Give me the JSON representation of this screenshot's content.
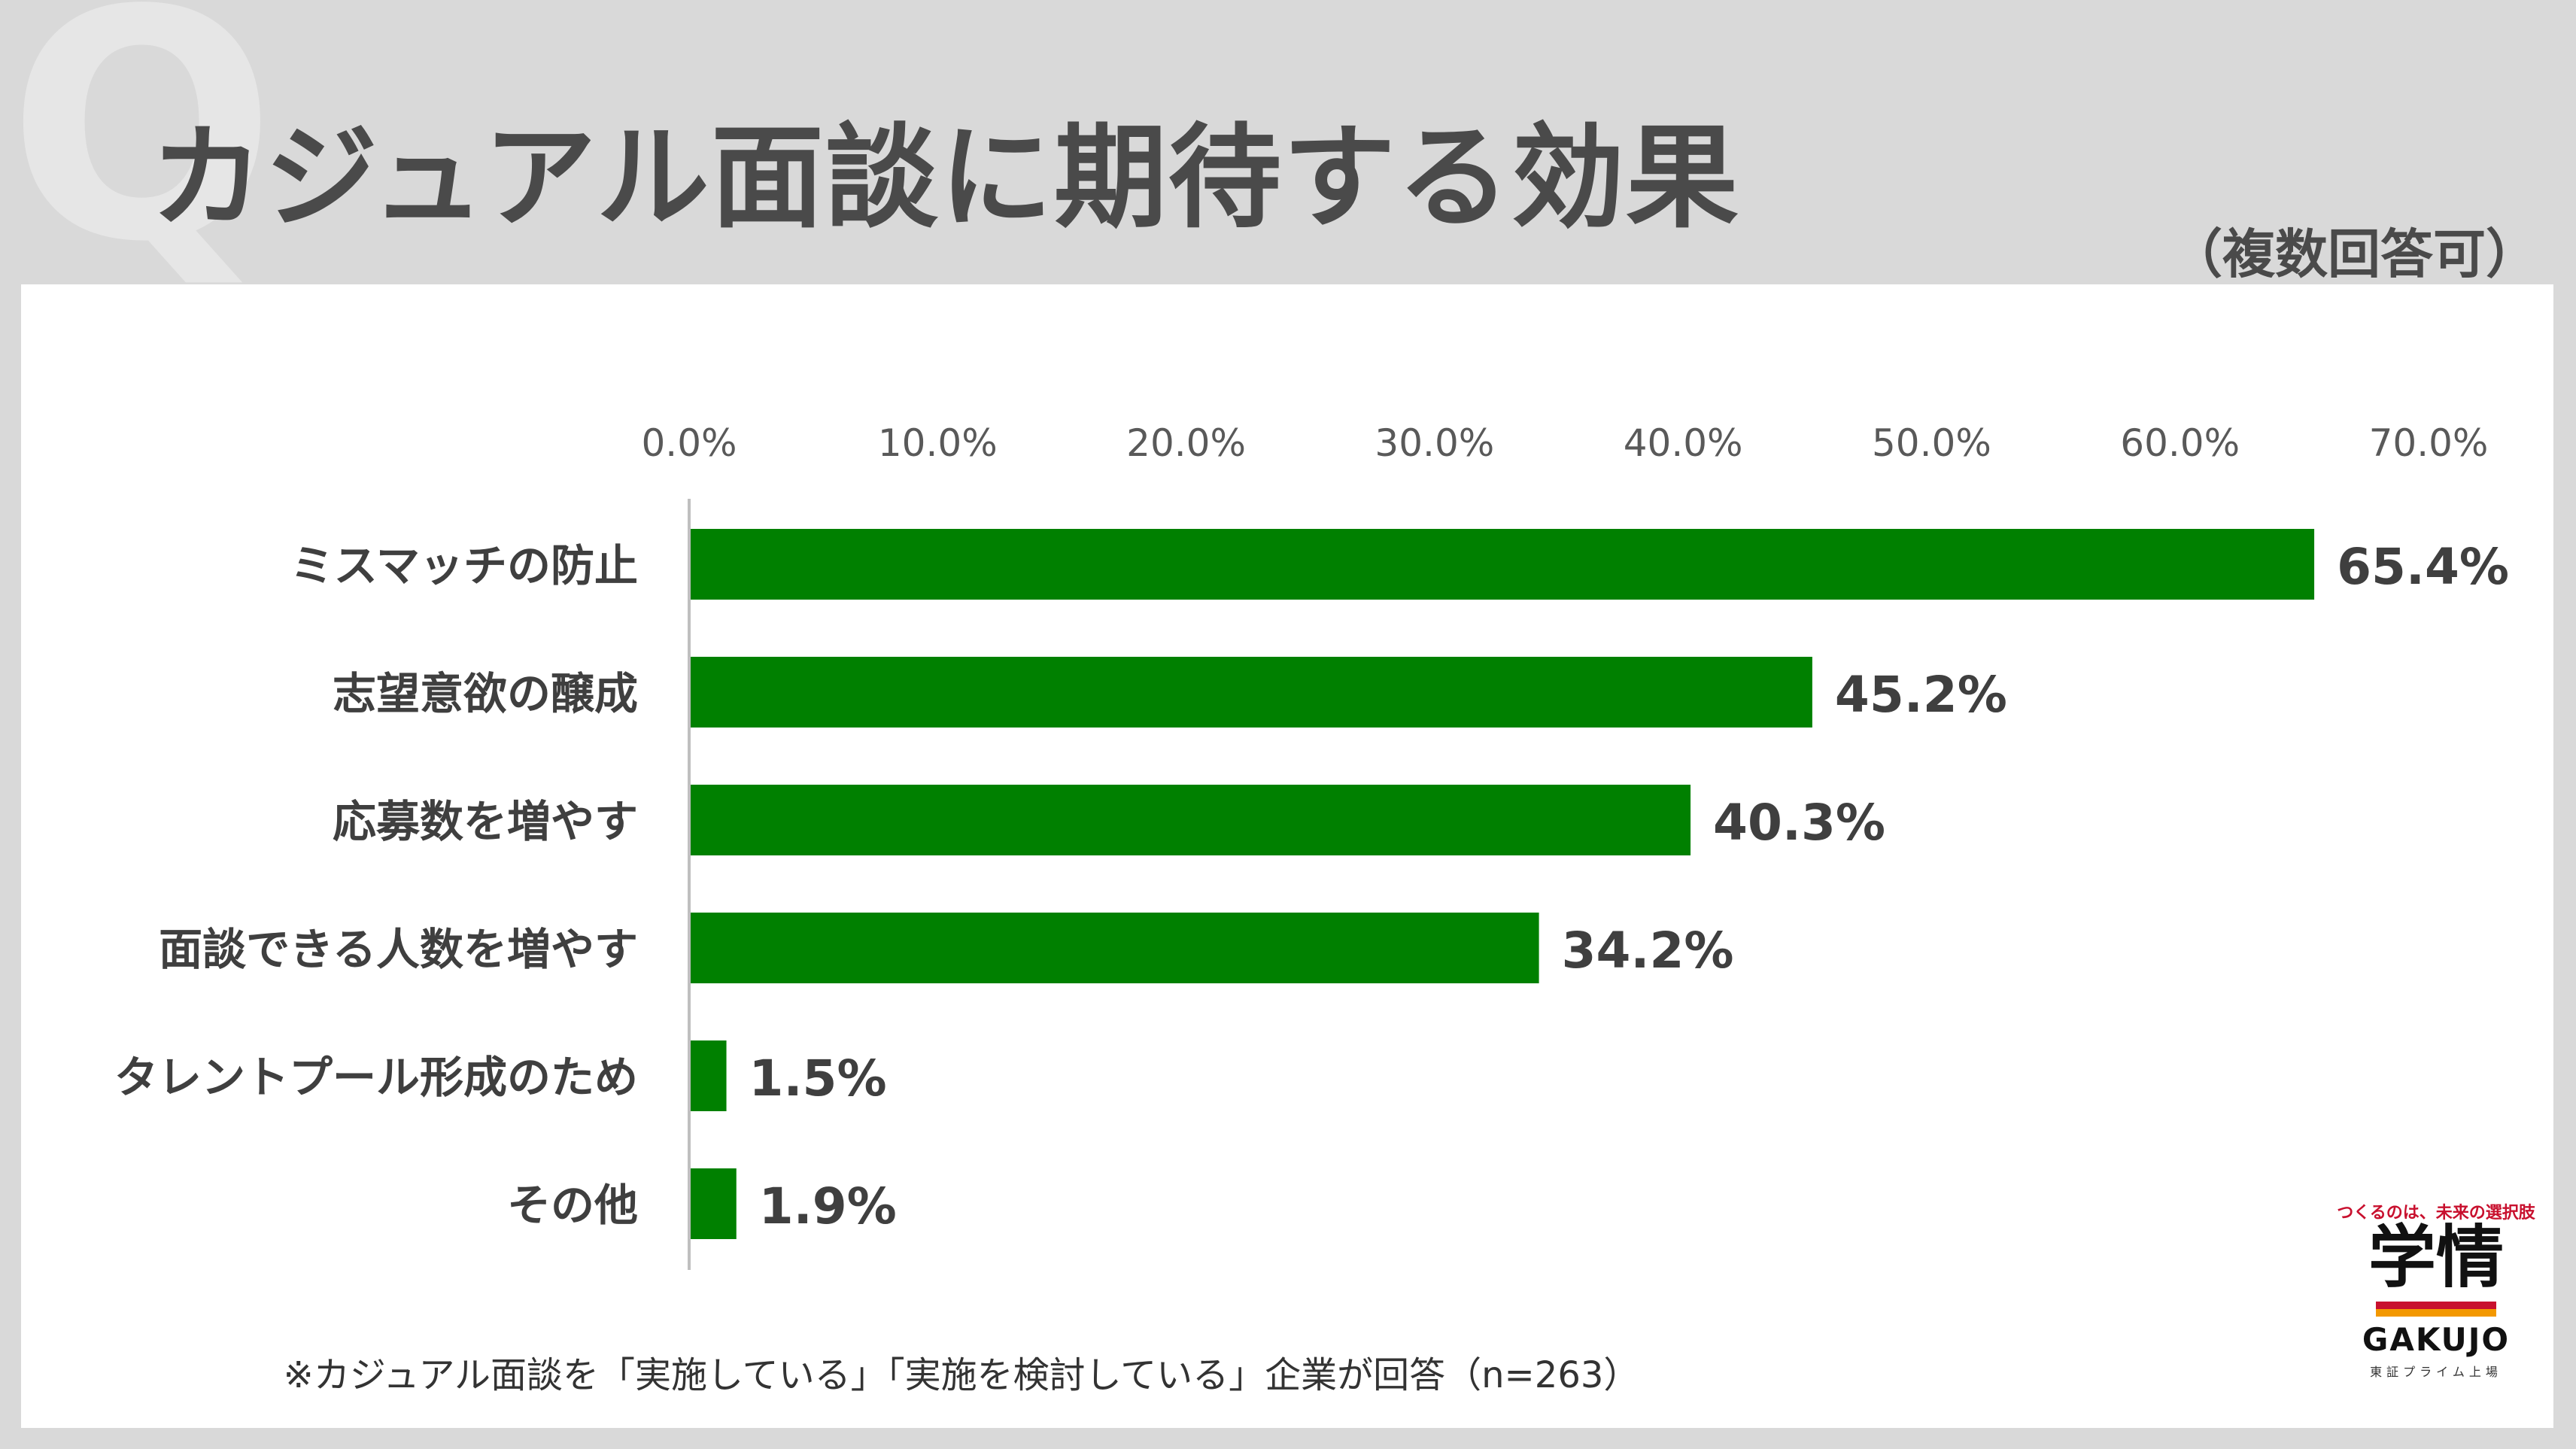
{
  "slide": {
    "watermark": "Q",
    "title": "カジュアル面談に期待する効果",
    "note": "（複数回答可）",
    "footnote": "※カジュアル面談を「実施している」「実施を検討している」企業が回答（n=263）"
  },
  "logo": {
    "tagline": "つくるのは、未来の選択肢",
    "brand": "学情",
    "english": "GAKUJO",
    "listing": "東証プライム上場",
    "colors": {
      "red": "#c8102e",
      "orange": "#f39800"
    }
  },
  "chart_data": {
    "type": "bar",
    "orientation": "horizontal",
    "categories": [
      "ミスマッチの防止",
      "志望意欲の醸成",
      "応募数を増やす",
      "面談できる人数を増やす",
      "タレントプール形成のため",
      "その他"
    ],
    "values": [
      65.4,
      45.2,
      40.3,
      34.2,
      1.5,
      1.9
    ],
    "value_labels": [
      "65.4%",
      "45.2%",
      "40.3%",
      "34.2%",
      "1.5%",
      "1.9%"
    ],
    "x_ticks": [
      "0.0%",
      "10.0%",
      "20.0%",
      "30.0%",
      "40.0%",
      "50.0%",
      "60.0%",
      "70.0%"
    ],
    "xlim": [
      0,
      70
    ],
    "axis_position": "top",
    "grid": false,
    "bar_color": "#008000"
  }
}
